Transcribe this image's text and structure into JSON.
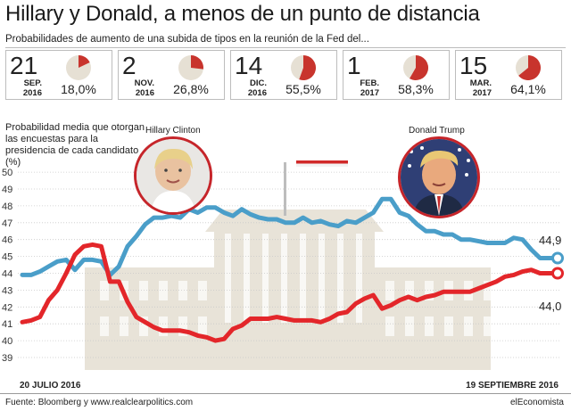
{
  "title": "Hillary y Donald, a menos de un punto de distancia",
  "subtitle": "Probabilidades de aumento de una subida de tipos en la reunión de la Fed del...",
  "fed_meetings": [
    {
      "day": "21",
      "month": "SEP.",
      "year": "2016",
      "prob_label": "18,0%",
      "prob": 18.0
    },
    {
      "day": "2",
      "month": "NOV.",
      "year": "2016",
      "prob_label": "26,8%",
      "prob": 26.8
    },
    {
      "day": "14",
      "month": "DIC.",
      "year": "2016",
      "prob_label": "55,5%",
      "prob": 55.5
    },
    {
      "day": "1",
      "month": "FEB.",
      "year": "2017",
      "prob_label": "58,3%",
      "prob": 58.3
    },
    {
      "day": "15",
      "month": "MAR.",
      "year": "2017",
      "prob_label": "64,1%",
      "prob": 64.1
    }
  ],
  "colors": {
    "clinton": "#4a9ec9",
    "trump": "#e3262a",
    "pie_rest": "#e6e0d4",
    "pie_fill": "#c8342d",
    "building": "#e8e3d8"
  },
  "chart_data": {
    "type": "line",
    "ylabel": "Probabilidad media que otorgan las encuestas para la presidencia de cada candidato (%)",
    "ylim": [
      39,
      50
    ],
    "yticks": [
      "39",
      "40",
      "41",
      "42",
      "43",
      "44",
      "45",
      "46",
      "47",
      "48",
      "49",
      "50"
    ],
    "x_start_label": "20 JULIO 2016",
    "x_end_label": "19 SEPTIEMBRE 2016",
    "grid": true,
    "series": [
      {
        "name": "Hillary Clinton",
        "values": [
          43.9,
          43.9,
          44.1,
          44.4,
          44.7,
          44.8,
          44.2,
          44.8,
          44.8,
          44.7,
          43.9,
          44.4,
          45.6,
          46.2,
          46.9,
          47.3,
          47.3,
          47.4,
          47.3,
          47.8,
          47.6,
          47.9,
          47.9,
          47.6,
          47.4,
          47.8,
          47.5,
          47.3,
          47.2,
          47.2,
          47.0,
          47.0,
          47.3,
          47.0,
          47.1,
          46.9,
          46.8,
          47.1,
          47.0,
          47.3,
          47.6,
          48.4,
          48.4,
          47.6,
          47.4,
          46.9,
          46.5,
          46.5,
          46.3,
          46.3,
          46.0,
          46.0,
          45.9,
          45.8,
          45.8,
          45.8,
          46.1,
          46.0,
          45.4,
          44.9,
          44.9,
          44.9
        ]
      },
      {
        "name": "Donald Trump",
        "values": [
          41.1,
          41.2,
          41.4,
          42.4,
          43.0,
          44.0,
          45.1,
          45.6,
          45.7,
          45.6,
          43.5,
          43.5,
          42.3,
          41.4,
          41.1,
          40.8,
          40.6,
          40.6,
          40.6,
          40.5,
          40.3,
          40.2,
          40.0,
          40.1,
          40.7,
          40.9,
          41.3,
          41.3,
          41.3,
          41.4,
          41.3,
          41.2,
          41.2,
          41.2,
          41.1,
          41.3,
          41.6,
          41.7,
          42.2,
          42.5,
          42.7,
          41.9,
          42.1,
          42.4,
          42.6,
          42.4,
          42.6,
          42.7,
          42.9,
          42.9,
          42.9,
          42.9,
          43.1,
          43.3,
          43.5,
          43.8,
          43.9,
          44.1,
          44.2,
          44.0,
          44.0,
          44.0
        ]
      }
    ],
    "end_labels": [
      "44,9",
      "44,0"
    ]
  },
  "portraits": {
    "clinton_caption": "Hillary Clinton",
    "trump_caption": "Donald Trump"
  },
  "source": "Fuente: Bloomberg y www.realclearpolitics.com",
  "brand": "elEconomista"
}
